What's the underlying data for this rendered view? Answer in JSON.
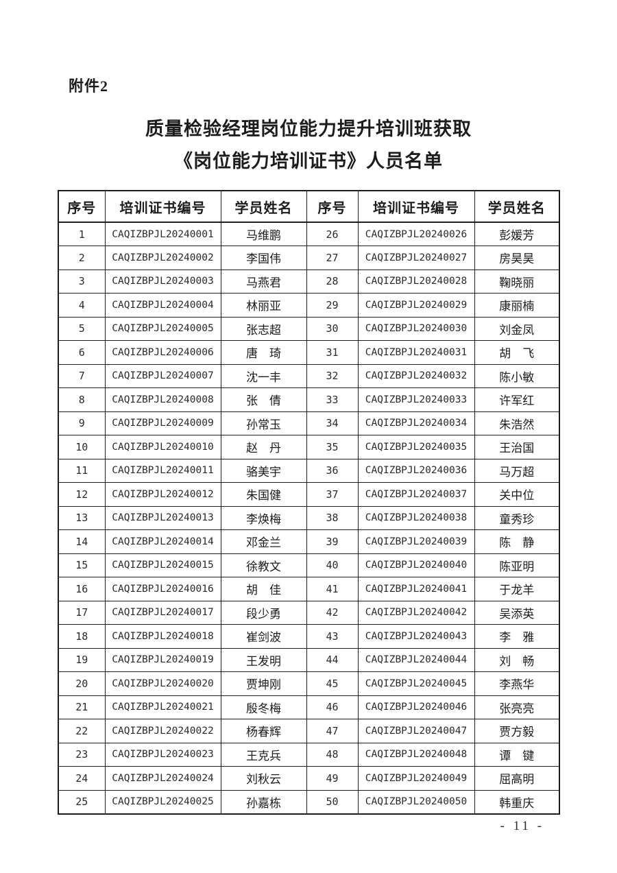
{
  "page": {
    "attachment_label": "附件2",
    "title_line1": "质量检验经理岗位能力提升培训班获取",
    "title_line2": "《岗位能力培训证书》人员名单",
    "page_number": "- 11 -"
  },
  "table": {
    "headers": [
      "序号",
      "培训证书编号",
      "学员姓名",
      "序号",
      "培训证书编号",
      "学员姓名"
    ],
    "entries": [
      {
        "no": "1",
        "cert": "CAQIZBPJL20240001",
        "name": "马维鹏"
      },
      {
        "no": "2",
        "cert": "CAQIZBPJL20240002",
        "name": "李国伟"
      },
      {
        "no": "3",
        "cert": "CAQIZBPJL20240003",
        "name": "马燕君"
      },
      {
        "no": "4",
        "cert": "CAQIZBPJL20240004",
        "name": "林丽亚"
      },
      {
        "no": "5",
        "cert": "CAQIZBPJL20240005",
        "name": "张志超"
      },
      {
        "no": "6",
        "cert": "CAQIZBPJL20240006",
        "name": "唐　琦"
      },
      {
        "no": "7",
        "cert": "CAQIZBPJL20240007",
        "name": "沈一丰"
      },
      {
        "no": "8",
        "cert": "CAQIZBPJL20240008",
        "name": "张　倩"
      },
      {
        "no": "9",
        "cert": "CAQIZBPJL20240009",
        "name": "孙常玉"
      },
      {
        "no": "10",
        "cert": "CAQIZBPJL20240010",
        "name": "赵　丹"
      },
      {
        "no": "11",
        "cert": "CAQIZBPJL20240011",
        "name": "骆美宇"
      },
      {
        "no": "12",
        "cert": "CAQIZBPJL20240012",
        "name": "朱国健"
      },
      {
        "no": "13",
        "cert": "CAQIZBPJL20240013",
        "name": "李焕梅"
      },
      {
        "no": "14",
        "cert": "CAQIZBPJL20240014",
        "name": "邓金兰"
      },
      {
        "no": "15",
        "cert": "CAQIZBPJL20240015",
        "name": "徐教文"
      },
      {
        "no": "16",
        "cert": "CAQIZBPJL20240016",
        "name": "胡　佳"
      },
      {
        "no": "17",
        "cert": "CAQIZBPJL20240017",
        "name": "段少勇"
      },
      {
        "no": "18",
        "cert": "CAQIZBPJL20240018",
        "name": "崔剑波"
      },
      {
        "no": "19",
        "cert": "CAQIZBPJL20240019",
        "name": "王发明"
      },
      {
        "no": "20",
        "cert": "CAQIZBPJL20240020",
        "name": "贾坤刚"
      },
      {
        "no": "21",
        "cert": "CAQIZBPJL20240021",
        "name": "殷冬梅"
      },
      {
        "no": "22",
        "cert": "CAQIZBPJL20240022",
        "name": "杨春辉"
      },
      {
        "no": "23",
        "cert": "CAQIZBPJL20240023",
        "name": "王克兵"
      },
      {
        "no": "24",
        "cert": "CAQIZBPJL20240024",
        "name": "刘秋云"
      },
      {
        "no": "25",
        "cert": "CAQIZBPJL20240025",
        "name": "孙嘉栋"
      },
      {
        "no": "26",
        "cert": "CAQIZBPJL20240026",
        "name": "彭媛芳"
      },
      {
        "no": "27",
        "cert": "CAQIZBPJL20240027",
        "name": "房昊昊"
      },
      {
        "no": "28",
        "cert": "CAQIZBPJL20240028",
        "name": "鞠晓丽"
      },
      {
        "no": "29",
        "cert": "CAQIZBPJL20240029",
        "name": "康丽楠"
      },
      {
        "no": "30",
        "cert": "CAQIZBPJL20240030",
        "name": "刘金凤"
      },
      {
        "no": "31",
        "cert": "CAQIZBPJL20240031",
        "name": "胡　飞"
      },
      {
        "no": "32",
        "cert": "CAQIZBPJL20240032",
        "name": "陈小敏"
      },
      {
        "no": "33",
        "cert": "CAQIZBPJL20240033",
        "name": "许军红"
      },
      {
        "no": "34",
        "cert": "CAQIZBPJL20240034",
        "name": "朱浩然"
      },
      {
        "no": "35",
        "cert": "CAQIZBPJL20240035",
        "name": "王治国"
      },
      {
        "no": "36",
        "cert": "CAQIZBPJL20240036",
        "name": "马万超"
      },
      {
        "no": "37",
        "cert": "CAQIZBPJL20240037",
        "name": "关中位"
      },
      {
        "no": "38",
        "cert": "CAQIZBPJL20240038",
        "name": "童秀珍"
      },
      {
        "no": "39",
        "cert": "CAQIZBPJL20240039",
        "name": "陈　静"
      },
      {
        "no": "40",
        "cert": "CAQIZBPJL20240040",
        "name": "陈亚明"
      },
      {
        "no": "41",
        "cert": "CAQIZBPJL20240041",
        "name": "于龙羊"
      },
      {
        "no": "42",
        "cert": "CAQIZBPJL20240042",
        "name": "吴添英"
      },
      {
        "no": "43",
        "cert": "CAQIZBPJL20240043",
        "name": "李　雅"
      },
      {
        "no": "44",
        "cert": "CAQIZBPJL20240044",
        "name": "刘　畅"
      },
      {
        "no": "45",
        "cert": "CAQIZBPJL20240045",
        "name": "李燕华"
      },
      {
        "no": "46",
        "cert": "CAQIZBPJL20240046",
        "name": "张亮亮"
      },
      {
        "no": "47",
        "cert": "CAQIZBPJL20240047",
        "name": "贾方毅"
      },
      {
        "no": "48",
        "cert": "CAQIZBPJL20240048",
        "name": "谭　键"
      },
      {
        "no": "49",
        "cert": "CAQIZBPJL20240049",
        "name": "屈高明"
      },
      {
        "no": "50",
        "cert": "CAQIZBPJL20240050",
        "name": "韩重庆"
      }
    ]
  }
}
